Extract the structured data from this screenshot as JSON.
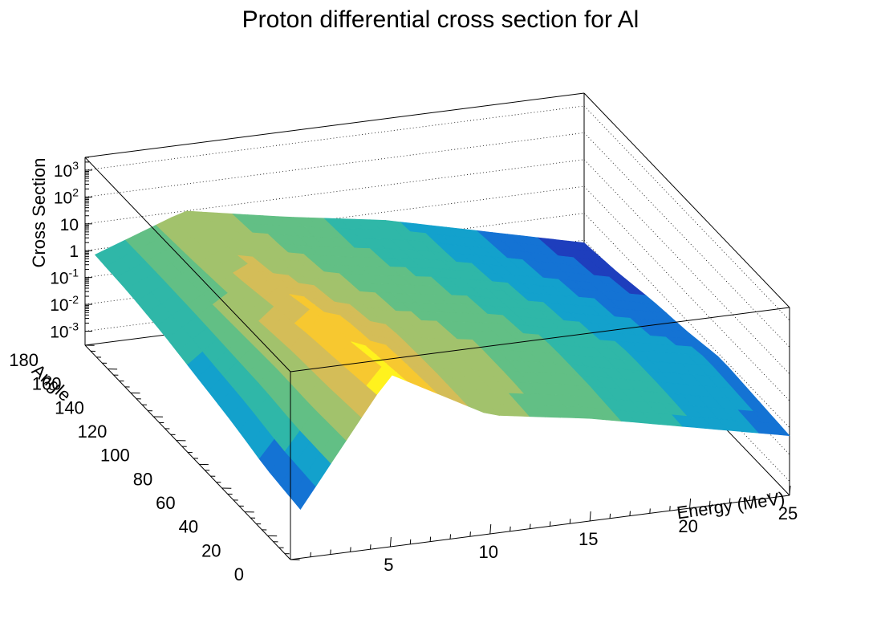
{
  "chart_data": {
    "type": "surface",
    "title": "Proton differential cross section for Al",
    "xlabel": "Energy (MeV)",
    "ylabel": "Angle",
    "zlabel": "Cross Section",
    "xlim": [
      0,
      25
    ],
    "ylim": [
      0,
      180
    ],
    "zscale": "log",
    "zlim": [
      0.0003,
      3000
    ],
    "x_ticks": [
      5,
      10,
      15,
      20,
      25
    ],
    "x_tick_labels": [
      "5",
      "10",
      "15",
      "20",
      "25"
    ],
    "y_ticks": [
      0,
      20,
      40,
      60,
      80,
      100,
      120,
      140,
      160,
      180
    ],
    "y_tick_labels": [
      "0",
      "20",
      "40",
      "60",
      "80",
      "100",
      "120",
      "140",
      "160",
      "180"
    ],
    "z_tick_labels": [
      "10^-3",
      "10^-2",
      "10^-1",
      "1",
      "10",
      "10^2",
      "10^3"
    ],
    "colormap": [
      "#1e3ebd",
      "#1473d4",
      "#13a1cc",
      "#2fb7a8",
      "#62bf85",
      "#a2c26c",
      "#d4bd58",
      "#f7c830",
      "#fff21e"
    ],
    "energy_grid": [
      0.5,
      5,
      10,
      15,
      20,
      25
    ],
    "angle_grid": [
      0,
      30,
      60,
      90,
      120,
      150,
      180
    ],
    "log10_values": [
      [
        -1.7,
        2.9,
        0.9,
        0.3,
        -0.5,
        -1.3
      ],
      [
        -1.5,
        2.6,
        1.0,
        0.4,
        -0.4,
        -1.2
      ],
      [
        -1.1,
        2.3,
        1.0,
        0.4,
        -0.4,
        -1.1
      ],
      [
        -0.8,
        1.9,
        0.8,
        0.2,
        -0.6,
        -1.4
      ],
      [
        -0.5,
        1.5,
        0.6,
        0.0,
        -0.8,
        -1.6
      ],
      [
        -0.3,
        1.2,
        0.4,
        -0.2,
        -1.0,
        -1.9
      ],
      [
        -0.2,
        1.0,
        0.3,
        -0.3,
        -1.2,
        -2.1
      ]
    ]
  }
}
